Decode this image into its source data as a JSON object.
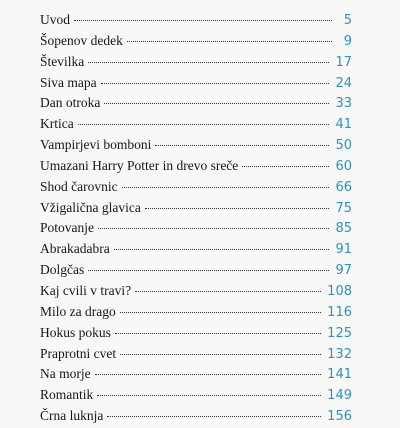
{
  "toc": {
    "entries": [
      {
        "title": "Uvod",
        "page": "5"
      },
      {
        "title": "Šopenov dedek",
        "page": "9"
      },
      {
        "title": "Številka",
        "page": "17"
      },
      {
        "title": "Siva mapa",
        "page": "24"
      },
      {
        "title": "Dan otroka",
        "page": "33"
      },
      {
        "title": "Krtica",
        "page": "41"
      },
      {
        "title": "Vampirjevi bomboni",
        "page": "50"
      },
      {
        "title": "Umazani Harry Potter in drevo sreče",
        "page": "60"
      },
      {
        "title": "Shod čarovnic",
        "page": "66"
      },
      {
        "title": "Vžigalična glavica",
        "page": "75"
      },
      {
        "title": "Potovanje",
        "page": "85"
      },
      {
        "title": "Abrakadabra",
        "page": "91"
      },
      {
        "title": "Dolgčas",
        "page": "97"
      },
      {
        "title": "Kaj cvili v travi?",
        "page": "108"
      },
      {
        "title": "Milo za drago",
        "page": "116"
      },
      {
        "title": "Hokus pokus",
        "page": "125"
      },
      {
        "title": "Praprotni cvet",
        "page": "132"
      },
      {
        "title": "Na morje",
        "page": "141"
      },
      {
        "title": "Romantik",
        "page": "149"
      },
      {
        "title": "Črna luknja",
        "page": "156"
      }
    ]
  }
}
